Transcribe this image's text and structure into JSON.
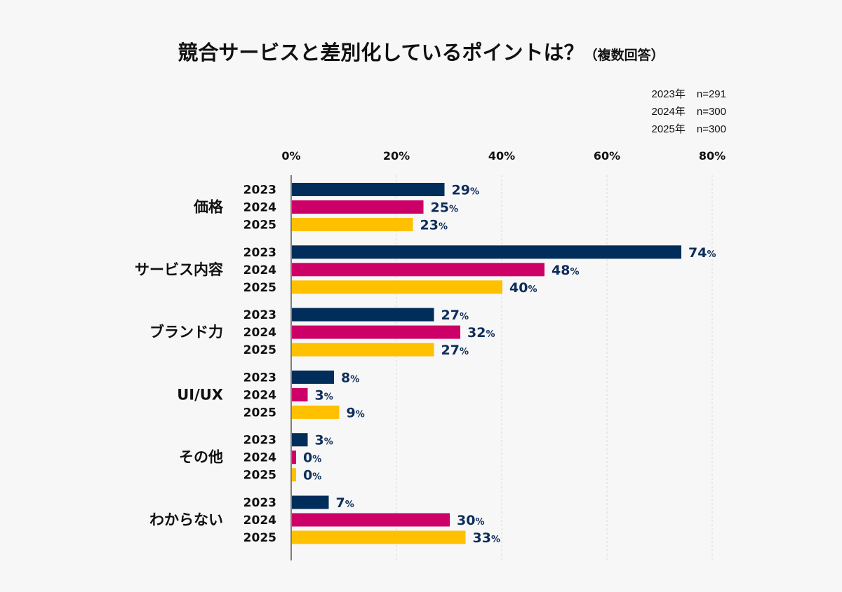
{
  "chart_data": {
    "type": "bar",
    "orientation": "horizontal",
    "title": "競合サービスと差別化しているポイントは？",
    "subtitle": "（複数回答）",
    "categories": [
      "価格",
      "サービス内容",
      "ブランド力",
      "UI/UX",
      "その他",
      "わからない"
    ],
    "series": [
      {
        "name": "2023",
        "color": "#002d5a",
        "values": [
          29,
          74,
          27,
          8,
          3,
          7
        ]
      },
      {
        "name": "2024",
        "color": "#cc0066",
        "values": [
          25,
          48,
          32,
          3,
          0,
          30
        ]
      },
      {
        "name": "2025",
        "color": "#ffc000",
        "values": [
          23,
          40,
          27,
          9,
          0,
          33
        ]
      }
    ],
    "xlim": [
      0,
      80
    ],
    "xticks": [
      "0%",
      "20%",
      "40%",
      "60%",
      "80%"
    ],
    "xtick_values": [
      0,
      20,
      40,
      60,
      80
    ],
    "value_suffix": "%",
    "grid": "vertical dashed",
    "value_label_color": "#0d2d5a",
    "sample_sizes": [
      {
        "year": "2023年",
        "n": "n=291"
      },
      {
        "year": "2024年",
        "n": "n=300"
      },
      {
        "year": "2025年",
        "n": "n=300"
      }
    ]
  }
}
